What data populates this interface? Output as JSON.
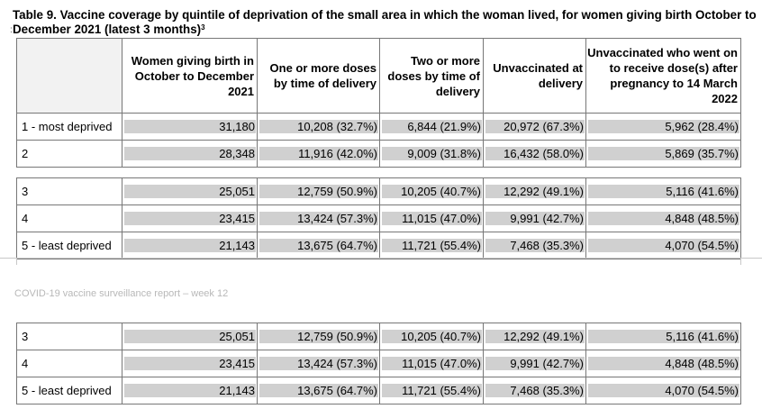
{
  "title": {
    "text": "Table 9. Vaccine coverage by quintile of deprivation of the small area in which the woman lived, for women giving birth October to December 2021 (latest 3 months)",
    "sup": "3"
  },
  "table": {
    "headers": [
      "",
      "Women giving birth in October to December 2021",
      "One or more doses by time of delivery",
      "Two or more doses by time of delivery",
      "Unvaccinated at delivery",
      "Unvaccinated who went on to receive dose(s) after pregnancy to 14 March 2022"
    ],
    "rows": [
      {
        "label": "1 - most deprived",
        "cells": [
          "31,180",
          "10,208 (32.7%)",
          "6,844 (21.9%)",
          "20,972 (67.3%)",
          "5,962 (28.4%)"
        ]
      },
      {
        "label": "2",
        "cells": [
          "28,348",
          "11,916 (42.0%)",
          "9,009 (31.8%)",
          "16,432 (58.0%)",
          "5,869 (35.7%)"
        ]
      },
      {
        "label": "3",
        "cells": [
          "25,051",
          "12,759 (50.9%)",
          "10,205 (40.7%)",
          "12,292 (49.1%)",
          "5,116 (41.6%)"
        ]
      },
      {
        "label": "4",
        "cells": [
          "23,415",
          "13,424 (57.3%)",
          "11,015 (47.0%)",
          "9,991 (42.7%)",
          "4,848 (48.5%)"
        ]
      },
      {
        "label": "5 - least deprived",
        "cells": [
          "21,143",
          "13,675 (64.7%)",
          "11,721 (55.4%)",
          "7,468 (35.3%)",
          "4,070 (54.5%)"
        ]
      }
    ]
  },
  "footer": {
    "text": "COVID-19 vaccine surveillance report – week 12"
  }
}
